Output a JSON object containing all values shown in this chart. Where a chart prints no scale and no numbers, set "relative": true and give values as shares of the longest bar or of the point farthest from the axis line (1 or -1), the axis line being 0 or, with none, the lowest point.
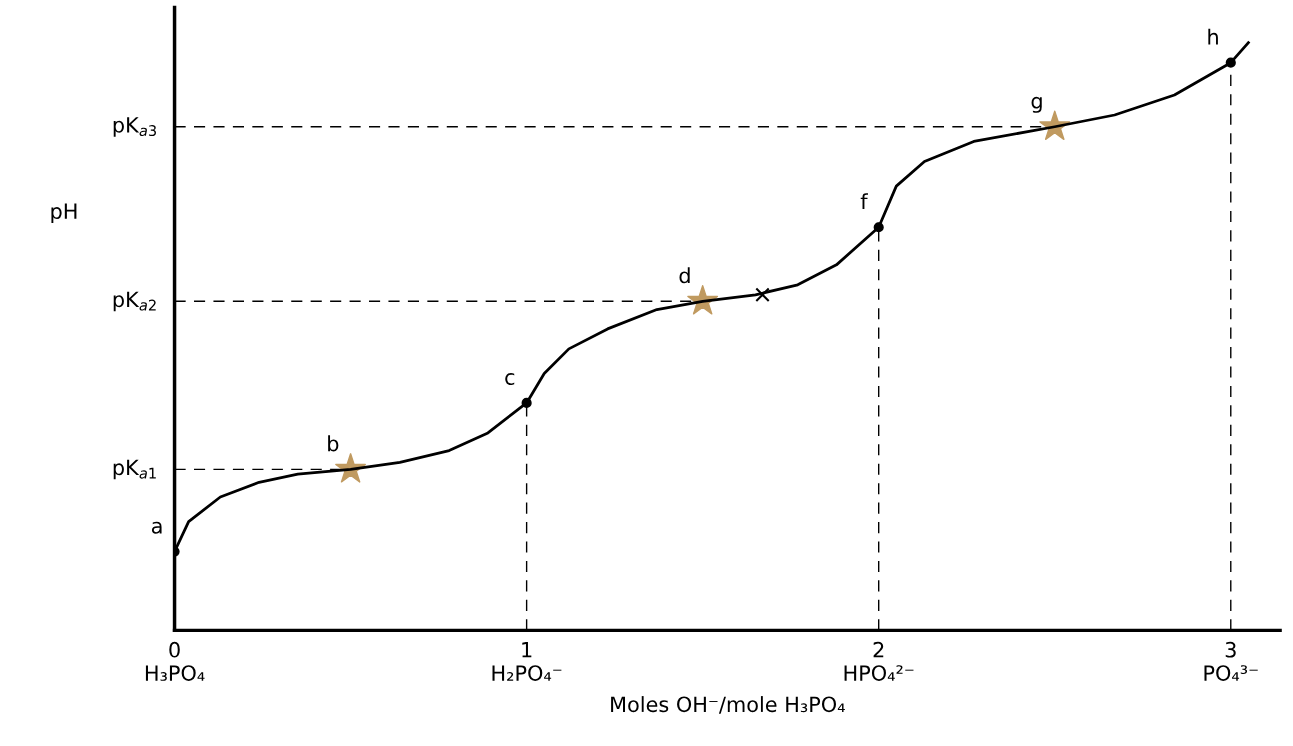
{
  "chart_data": {
    "type": "line",
    "relative": true,
    "xlabel": "Moles OH⁻/mole H₃PO₄",
    "ylabel": "pH",
    "xlim": [
      0,
      3.14
    ],
    "xticks": [
      {
        "value": 0,
        "label": "0\nH₃PO₄"
      },
      {
        "value": 1,
        "label": "1\nH₂PO₄⁻"
      },
      {
        "value": 2,
        "label": "2\nHPO₄²⁻"
      },
      {
        "value": 3,
        "label": "3\nPO₄³⁻"
      }
    ],
    "tick_labels": "x",
    "series": [
      {
        "color": "#000000",
        "line_style": "solid",
        "x": [
          0,
          0.04,
          0.13,
          0.24,
          0.35,
          0.5,
          0.64,
          0.78,
          0.89,
          1.0,
          1.05,
          1.12,
          1.23,
          1.37,
          1.5,
          1.65,
          1.77,
          1.88,
          2.0,
          2.05,
          2.13,
          2.27,
          2.5,
          2.67,
          2.84,
          3.0,
          3.05
        ],
        "values": [
          0.134,
          0.185,
          0.227,
          0.252,
          0.266,
          0.274,
          0.286,
          0.306,
          0.336,
          0.387,
          0.437,
          0.479,
          0.513,
          0.546,
          0.56,
          0.571,
          0.588,
          0.622,
          0.686,
          0.756,
          0.798,
          0.832,
          0.857,
          0.877,
          0.911,
          0.966,
          1
        ]
      },
      {
        "type": "line",
        "color": "#000000",
        "line_style": "dashed",
        "x": [
          0,
          0.5
        ],
        "values": [
          0.274,
          0.274
        ]
      },
      {
        "type": "line",
        "color": "#000000",
        "line_style": "dashed",
        "x": [
          0,
          1.5
        ],
        "values": [
          0.56,
          0.56
        ]
      },
      {
        "type": "line",
        "color": "#000000",
        "line_style": "dashed",
        "x": [
          0,
          2.5
        ],
        "values": [
          0.857,
          0.857
        ]
      },
      {
        "type": "line",
        "color": "#000000",
        "line_style": "dashed",
        "x": [
          1,
          1
        ],
        "values": [
          0,
          0.387
        ]
      },
      {
        "type": "line",
        "color": "#000000",
        "line_style": "dashed",
        "x": [
          2,
          2
        ],
        "values": [
          0,
          0.686
        ]
      },
      {
        "type": "line",
        "color": "#000000",
        "line_style": "dashed",
        "x": [
          3,
          3
        ],
        "values": [
          0,
          0.966
        ]
      },
      {
        "type": "scatter",
        "color": "#000000",
        "marker": "circle",
        "x": [
          0,
          1,
          2,
          3
        ],
        "values": [
          0.134,
          0.387,
          0.686,
          0.966
        ]
      },
      {
        "type": "scatter",
        "color": "#c09a60",
        "marker": "star",
        "x": [
          0.5,
          1.5,
          2.5
        ],
        "values": [
          0.274,
          0.56,
          0.857
        ]
      },
      {
        "type": "scatter",
        "color": "#000000",
        "marker": "cross",
        "x": [
          1.67
        ],
        "values": [
          0.571
        ]
      }
    ],
    "annotations": [
      {
        "text": "a",
        "x": 0,
        "y": 0.134
      },
      {
        "text": "b",
        "x": 0.5,
        "y": 0.274
      },
      {
        "text": "c",
        "x": 1,
        "y": 0.387
      },
      {
        "text": "d",
        "x": 1.5,
        "y": 0.56
      },
      {
        "text": "f",
        "x": 2,
        "y": 0.686
      },
      {
        "text": "g",
        "x": 2.5,
        "y": 0.857
      },
      {
        "text": "h",
        "x": 3,
        "y": 0.966
      },
      {
        "text": "pK$_{a1}$",
        "x": 0,
        "y": 0.274
      },
      {
        "text": "pK$_{a2}$",
        "x": 0,
        "y": 0.56
      },
      {
        "text": "pK$_{a3}$",
        "x": 0,
        "y": 0.857
      }
    ]
  }
}
